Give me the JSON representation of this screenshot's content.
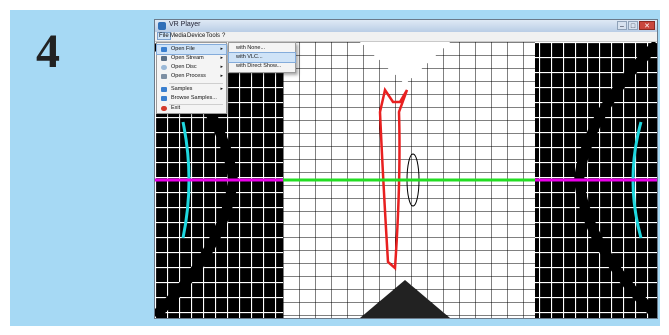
{
  "step_number": "4",
  "window": {
    "title": "VR Player",
    "minimize": "–",
    "maximize": "□",
    "close": "✕"
  },
  "menubar": [
    "File",
    "Media",
    "Device",
    "Tools",
    "?"
  ],
  "file_menu": [
    {
      "label": "Open File",
      "icon": "open-file-icon",
      "arrow": "▸"
    },
    {
      "label": "Open Stream",
      "icon": "open-stream-icon",
      "arrow": "▸"
    },
    {
      "label": "Open Disc",
      "icon": "open-disc-icon",
      "arrow": "▸"
    },
    {
      "label": "Open Process",
      "icon": "open-process-icon",
      "arrow": "▸"
    },
    {
      "label": "Samples",
      "icon": "samples-icon",
      "arrow": "▸"
    },
    {
      "label": "Browse Samples...",
      "icon": "browse-samples-icon",
      "arrow": ""
    },
    {
      "label": "Exit",
      "icon": "exit-icon",
      "arrow": ""
    }
  ],
  "open_file_submenu": [
    "with None...",
    "with VLC...",
    "with Direct Show..."
  ],
  "colors": {
    "panel": "#a6d9f4",
    "horizon_left": "#e800e8",
    "horizon_center": "#22dd22",
    "red_marker": "#e82020",
    "cyan_marker": "#1fd8e0",
    "menu_icon_blue": "#3a7fcf",
    "exit_icon": "#d33a2c"
  }
}
